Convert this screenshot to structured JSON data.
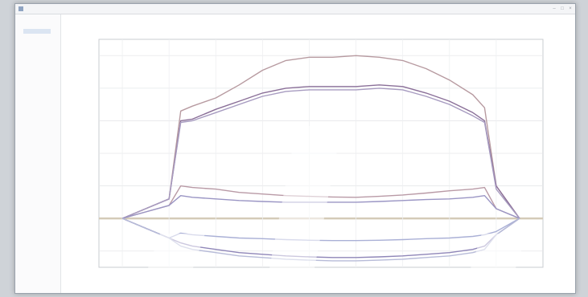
{
  "window": {
    "title": ""
  },
  "menu": {
    "items": [
      "",
      "",
      "",
      "",
      "",
      "",
      "",
      ""
    ]
  },
  "sidebar": {
    "items": [
      "",
      ""
    ]
  },
  "chart_data": {
    "type": "line",
    "x": [
      0,
      2,
      4,
      5,
      6,
      8,
      10,
      12,
      14,
      16,
      18,
      20,
      22,
      24,
      26,
      28,
      30,
      31,
      32,
      34
    ],
    "ylim": [
      -1.5,
      5.5
    ],
    "xlim": [
      -2,
      36
    ],
    "grid": true,
    "series": [
      {
        "color": "#b79aa0",
        "values": [
          0,
          0.3,
          0.6,
          3.3,
          3.45,
          3.7,
          4.1,
          4.55,
          4.85,
          4.95,
          4.95,
          5.0,
          4.95,
          4.85,
          4.6,
          4.25,
          3.8,
          3.4,
          1.0,
          0
        ]
      },
      {
        "color": "#8a6f98",
        "values": [
          0,
          0.3,
          0.6,
          3.0,
          3.05,
          3.35,
          3.6,
          3.85,
          4.0,
          4.05,
          4.05,
          4.05,
          4.1,
          4.05,
          3.85,
          3.6,
          3.25,
          3.0,
          1.0,
          0
        ]
      },
      {
        "color": "#a79bc0",
        "values": [
          0,
          0.3,
          0.6,
          2.95,
          3.0,
          3.25,
          3.5,
          3.75,
          3.9,
          3.95,
          3.95,
          3.95,
          4.0,
          3.95,
          3.75,
          3.5,
          3.15,
          2.95,
          0.9,
          0
        ]
      },
      {
        "color": "#b99aa6",
        "values": [
          0,
          0.2,
          0.4,
          1.0,
          0.95,
          0.9,
          0.8,
          0.75,
          0.7,
          0.68,
          0.66,
          0.65,
          0.68,
          0.72,
          0.78,
          0.85,
          0.9,
          0.95,
          0.3,
          0
        ]
      },
      {
        "color": "#9a95c4",
        "values": [
          0,
          0.2,
          0.4,
          0.7,
          0.65,
          0.6,
          0.55,
          0.52,
          0.5,
          0.5,
          0.5,
          0.5,
          0.52,
          0.55,
          0.58,
          0.6,
          0.65,
          0.7,
          0.3,
          0
        ]
      },
      {
        "color": "#aab0d6",
        "values": [
          0,
          -0.3,
          -0.6,
          -0.45,
          -0.5,
          -0.55,
          -0.6,
          -0.62,
          -0.65,
          -0.67,
          -0.68,
          -0.68,
          -0.67,
          -0.65,
          -0.62,
          -0.6,
          -0.55,
          -0.5,
          -0.4,
          0
        ]
      },
      {
        "color": "#8f86b8",
        "values": [
          0,
          -0.3,
          -0.6,
          -0.75,
          -0.85,
          -0.95,
          -1.05,
          -1.1,
          -1.15,
          -1.18,
          -1.2,
          -1.2,
          -1.18,
          -1.15,
          -1.1,
          -1.05,
          -0.95,
          -0.85,
          -0.5,
          0
        ]
      },
      {
        "color": "#b7bbd8",
        "values": [
          0,
          -0.3,
          -0.6,
          -0.85,
          -0.95,
          -1.05,
          -1.15,
          -1.2,
          -1.25,
          -1.28,
          -1.3,
          -1.3,
          -1.28,
          -1.25,
          -1.2,
          -1.15,
          -1.05,
          -0.95,
          -0.5,
          0
        ]
      }
    ]
  }
}
